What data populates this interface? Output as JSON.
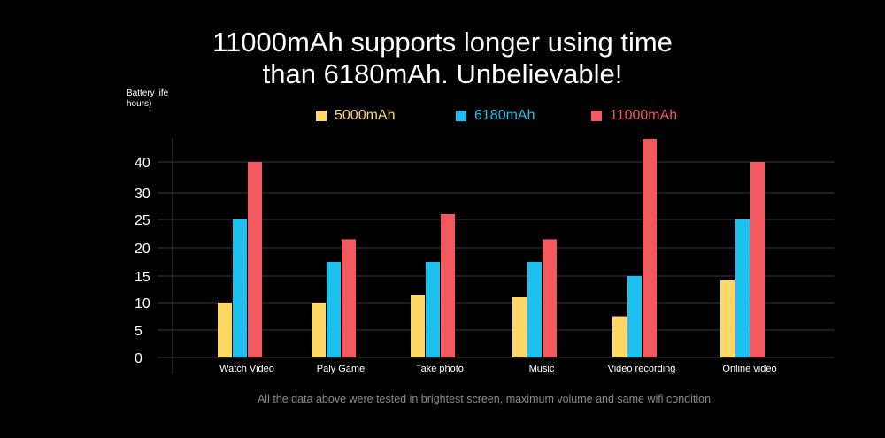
{
  "chart_data": {
    "type": "bar",
    "title": "11000mAh supports longer using time than 6180mAh. Unbelievable!",
    "title_lines": [
      "11000mAh supports longer using time",
      "than 6180mAh. Unbelievable!"
    ],
    "ylabel_lines": [
      "Battery life",
      "hours)"
    ],
    "xlabel": "",
    "categories": [
      "Watch Video",
      "Paly Game",
      "Take photo",
      "Music",
      "Video recording",
      "Online video"
    ],
    "y_ticks": [
      "0",
      "5",
      "10",
      "15",
      "20",
      "25",
      "30",
      "40"
    ],
    "series": [
      {
        "name": "5000mAh",
        "color": "#ffd866",
        "values": [
          10,
          10,
          11.5,
          11,
          7.5,
          14.2
        ]
      },
      {
        "name": "6180mAh",
        "color": "#1ec0f0",
        "values": [
          25,
          17.5,
          17.5,
          17.5,
          15,
          25
        ]
      },
      {
        "name": "11000mAh",
        "color": "#f2585e",
        "values": [
          40,
          21.5,
          26,
          21.5,
          44,
          40
        ]
      }
    ],
    "footnote": "All the data above were tested in brightest screen, maximum volume and same wifi condition"
  }
}
